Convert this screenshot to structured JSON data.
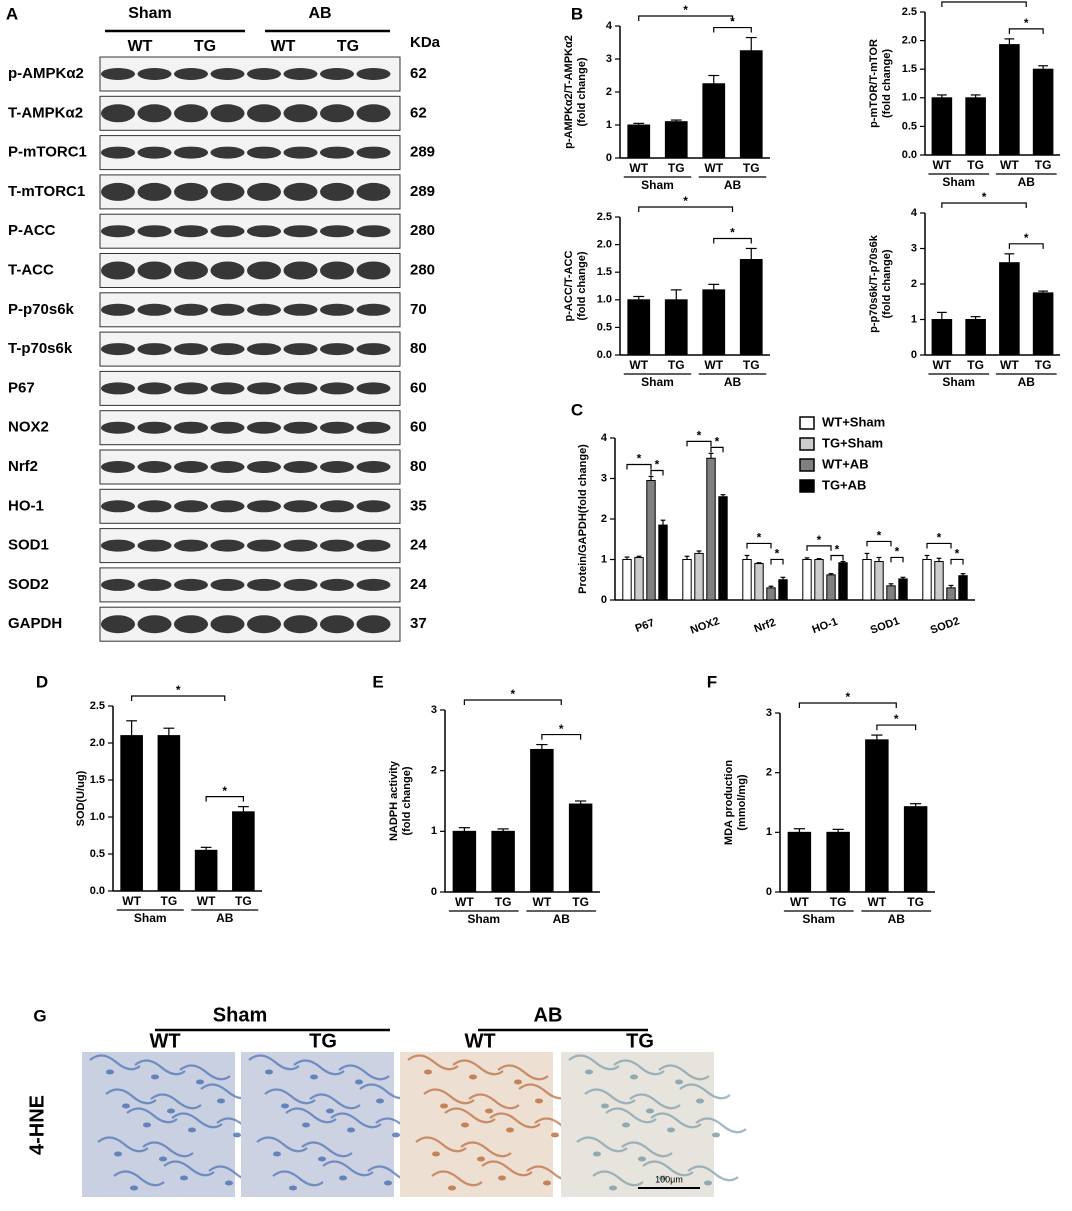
{
  "blot": {
    "panel": "A",
    "groups": [
      "Sham",
      "AB"
    ],
    "genotypes": [
      "WT",
      "TG",
      "WT",
      "TG"
    ],
    "unit": "KDa",
    "rows": [
      {
        "label": "p-AMPKα2",
        "kda": 62
      },
      {
        "label": "T-AMPKα2",
        "kda": 62
      },
      {
        "label": "P-mTORC1",
        "kda": 289
      },
      {
        "label": "T-mTORC1",
        "kda": 289
      },
      {
        "label": "P-ACC",
        "kda": 280
      },
      {
        "label": "T-ACC",
        "kda": 280
      },
      {
        "label": "P-p70s6k",
        "kda": 70
      },
      {
        "label": "T-p70s6k",
        "kda": 80
      },
      {
        "label": "P67",
        "kda": 60
      },
      {
        "label": "NOX2",
        "kda": 60
      },
      {
        "label": "Nrf2",
        "kda": 80
      },
      {
        "label": "HO-1",
        "kda": 35
      },
      {
        "label": "SOD1",
        "kda": 24
      },
      {
        "label": "SOD2",
        "kda": 24
      },
      {
        "label": "GAPDH",
        "kda": 37
      }
    ]
  },
  "chart_data": [
    {
      "type": "bar",
      "panel": "B",
      "ylabel": [
        "p-AMPKα2/T-AMPKα2",
        "(fold change)"
      ],
      "categories": [
        "WT",
        "TG",
        "WT",
        "TG"
      ],
      "groups": [
        "Sham",
        "AB"
      ],
      "values": [
        1.0,
        1.1,
        2.25,
        3.25
      ],
      "errors": [
        0.05,
        0.05,
        0.25,
        0.4
      ],
      "color": "#000000",
      "ylim": [
        0,
        4
      ],
      "yticks": [
        0,
        1,
        2,
        3,
        4
      ],
      "annotations": [
        "*",
        "*"
      ]
    },
    {
      "type": "bar",
      "panel": null,
      "ylabel": [
        "p-mTOR/T-mTOR",
        "(fold change)"
      ],
      "categories": [
        "WT",
        "TG",
        "WT",
        "TG"
      ],
      "groups": [
        "Sham",
        "AB"
      ],
      "values": [
        1.0,
        1.0,
        1.93,
        1.5
      ],
      "errors": [
        0.05,
        0.05,
        0.1,
        0.06
      ],
      "color": "#000000",
      "ylim": [
        0,
        2.5
      ],
      "yticks": [
        {
          "value": 0,
          "label": "0.0"
        },
        {
          "value": 0.5,
          "label": "0.5"
        },
        {
          "value": 1,
          "label": "1.0"
        },
        {
          "value": 1.5,
          "label": "1.5"
        },
        {
          "value": 2,
          "label": "2.0"
        },
        {
          "value": 2.5,
          "label": "2.5"
        }
      ],
      "annotations": [
        "*",
        "*"
      ]
    },
    {
      "type": "bar",
      "panel": null,
      "ylabel": [
        "p-ACC/T-ACC",
        "(fold change)"
      ],
      "categories": [
        "WT",
        "TG",
        "WT",
        "TG"
      ],
      "groups": [
        "Sham",
        "AB"
      ],
      "values": [
        1.0,
        1.0,
        1.18,
        1.73
      ],
      "errors": [
        0.06,
        0.18,
        0.1,
        0.2
      ],
      "color": "#000000",
      "ylim": [
        0,
        2.5
      ],
      "yticks": [
        {
          "value": 0,
          "label": "0.0"
        },
        {
          "value": 0.5,
          "label": "0.5"
        },
        {
          "value": 1,
          "label": "1.0"
        },
        {
          "value": 1.5,
          "label": "1.5"
        },
        {
          "value": 2,
          "label": "2.0"
        },
        {
          "value": 2.5,
          "label": "2.5"
        }
      ],
      "annotations": [
        "*",
        "*"
      ]
    },
    {
      "type": "bar",
      "panel": null,
      "ylabel": [
        "p-p70s6k/T-p70s6k",
        "(fold change)"
      ],
      "categories": [
        "WT",
        "TG",
        "WT",
        "TG"
      ],
      "groups": [
        "Sham",
        "AB"
      ],
      "values": [
        1.0,
        1.0,
        2.6,
        1.75
      ],
      "errors": [
        0.2,
        0.08,
        0.25,
        0.05
      ],
      "color": "#000000",
      "ylim": [
        0,
        4
      ],
      "yticks": [
        0,
        1,
        2,
        3,
        4
      ],
      "annotations": [
        "*",
        "*"
      ]
    },
    {
      "type": "grouped_bar",
      "panel": "C",
      "ylabel": [
        "Protein/GAPDH(fold change)"
      ],
      "categories": [
        "P67",
        "NOX2",
        "Nrf2",
        "HO-1",
        "SOD1",
        "SOD2"
      ],
      "series": [
        {
          "name": "WT+Sham",
          "color": "#ffffff",
          "values": [
            1,
            1,
            1,
            1,
            1,
            1
          ],
          "errors": [
            0.06,
            0.08,
            0.1,
            0.04,
            0.15,
            0.1
          ]
        },
        {
          "name": "TG+Sham",
          "color": "#cccccc",
          "values": [
            1.05,
            1.15,
            0.9,
            1.0,
            0.95,
            0.95
          ],
          "errors": [
            0.03,
            0.06,
            0.02,
            0.02,
            0.1,
            0.08
          ]
        },
        {
          "name": "WT+AB",
          "color": "#808080",
          "values": [
            2.95,
            3.5,
            0.3,
            0.62,
            0.35,
            0.3
          ],
          "errors": [
            0.1,
            0.12,
            0.04,
            0.03,
            0.05,
            0.06
          ]
        },
        {
          "name": "TG+AB",
          "color": "#000000",
          "values": [
            1.85,
            2.55,
            0.5,
            0.92,
            0.52,
            0.6
          ],
          "errors": [
            0.12,
            0.05,
            0.06,
            0.03,
            0.04,
            0.05
          ]
        }
      ],
      "ylim": [
        0,
        4
      ],
      "yticks": [
        0,
        1,
        2,
        3,
        4
      ],
      "annotations": [
        "*",
        "*",
        "*",
        "*",
        "*",
        "*",
        "*",
        "*",
        "*",
        "*",
        "*",
        "*"
      ]
    },
    {
      "type": "bar",
      "panel": "D",
      "ylabel": [
        "SOD(U/ug)"
      ],
      "categories": [
        "WT",
        "TG",
        "WT",
        "TG"
      ],
      "groups": [
        "Sham",
        "AB"
      ],
      "values": [
        2.1,
        2.1,
        0.55,
        1.07
      ],
      "errors": [
        0.2,
        0.1,
        0.04,
        0.07
      ],
      "color": "#000000",
      "ylim": [
        0,
        2.5
      ],
      "yticks": [
        {
          "value": 0,
          "label": "0.0"
        },
        {
          "value": 0.5,
          "label": "0.5"
        },
        {
          "value": 1,
          "label": "1.0"
        },
        {
          "value": 1.5,
          "label": "1.5"
        },
        {
          "value": 2,
          "label": "2.0"
        },
        {
          "value": 2.5,
          "label": "2.5"
        }
      ],
      "annotations": [
        "*",
        "*"
      ]
    },
    {
      "type": "bar",
      "panel": "E",
      "ylabel": [
        "NADPH activity",
        "(fold change)"
      ],
      "categories": [
        "WT",
        "TG",
        "WT",
        "TG"
      ],
      "groups": [
        "Sham",
        "AB"
      ],
      "values": [
        1.0,
        1.0,
        2.35,
        1.45
      ],
      "errors": [
        0.06,
        0.04,
        0.08,
        0.05
      ],
      "color": "#000000",
      "ylim": [
        0,
        3
      ],
      "yticks": [
        0,
        1,
        2,
        3
      ],
      "annotations": [
        "*",
        "*"
      ]
    },
    {
      "type": "bar",
      "panel": "F",
      "ylabel": [
        "MDA production",
        "(mmol/mg)"
      ],
      "categories": [
        "WT",
        "TG",
        "WT",
        "TG"
      ],
      "groups": [
        "Sham",
        "AB"
      ],
      "values": [
        1.0,
        1.0,
        2.55,
        1.43
      ],
      "errors": [
        0.06,
        0.05,
        0.08,
        0.05
      ],
      "color": "#000000",
      "ylim": [
        0,
        3
      ],
      "yticks": [
        0,
        1,
        2,
        3
      ],
      "annotations": [
        "*",
        "*"
      ]
    }
  ],
  "histology": {
    "panel": "G",
    "groups": [
      "Sham",
      "AB"
    ],
    "genotypes": [
      "WT",
      "TG",
      "WT",
      "TG"
    ],
    "stain": "4-HNE",
    "scale_bar": "100μm"
  }
}
